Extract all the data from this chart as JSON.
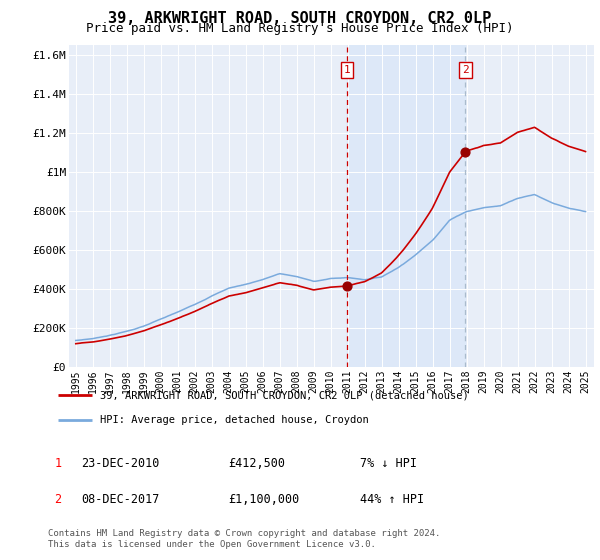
{
  "title": "39, ARKWRIGHT ROAD, SOUTH CROYDON, CR2 0LP",
  "subtitle": "Price paid vs. HM Land Registry's House Price Index (HPI)",
  "title_fontsize": 11,
  "subtitle_fontsize": 9,
  "ylim": [
    0,
    1600000
  ],
  "yticks": [
    0,
    200000,
    400000,
    600000,
    800000,
    1000000,
    1200000,
    1400000,
    1600000
  ],
  "ytick_labels": [
    "£0",
    "£200K",
    "£400K",
    "£600K",
    "£800K",
    "£1M",
    "£1.2M",
    "£1.4M",
    "£1.6M"
  ],
  "background_color": "#e8eef8",
  "legend_line1": "39, ARKWRIGHT ROAD, SOUTH CROYDON, CR2 0LP (detached house)",
  "legend_line2": "HPI: Average price, detached house, Croydon",
  "legend_color1": "#cc0000",
  "legend_color2": "#7aaadd",
  "transaction1_date": "23-DEC-2010",
  "transaction1_price": "£412,500",
  "transaction1_hpi": "7% ↓ HPI",
  "transaction2_date": "08-DEC-2017",
  "transaction2_price": "£1,100,000",
  "transaction2_hpi": "44% ↑ HPI",
  "footnote": "Contains HM Land Registry data © Crown copyright and database right 2024.\nThis data is licensed under the Open Government Licence v3.0.",
  "vline1_x": 2010.97,
  "vline2_x": 2017.93,
  "point1_x": 2010.97,
  "point1_y": 412500,
  "point2_x": 2017.93,
  "point2_y": 1100000,
  "xmin": 1995,
  "xmax": 2025
}
